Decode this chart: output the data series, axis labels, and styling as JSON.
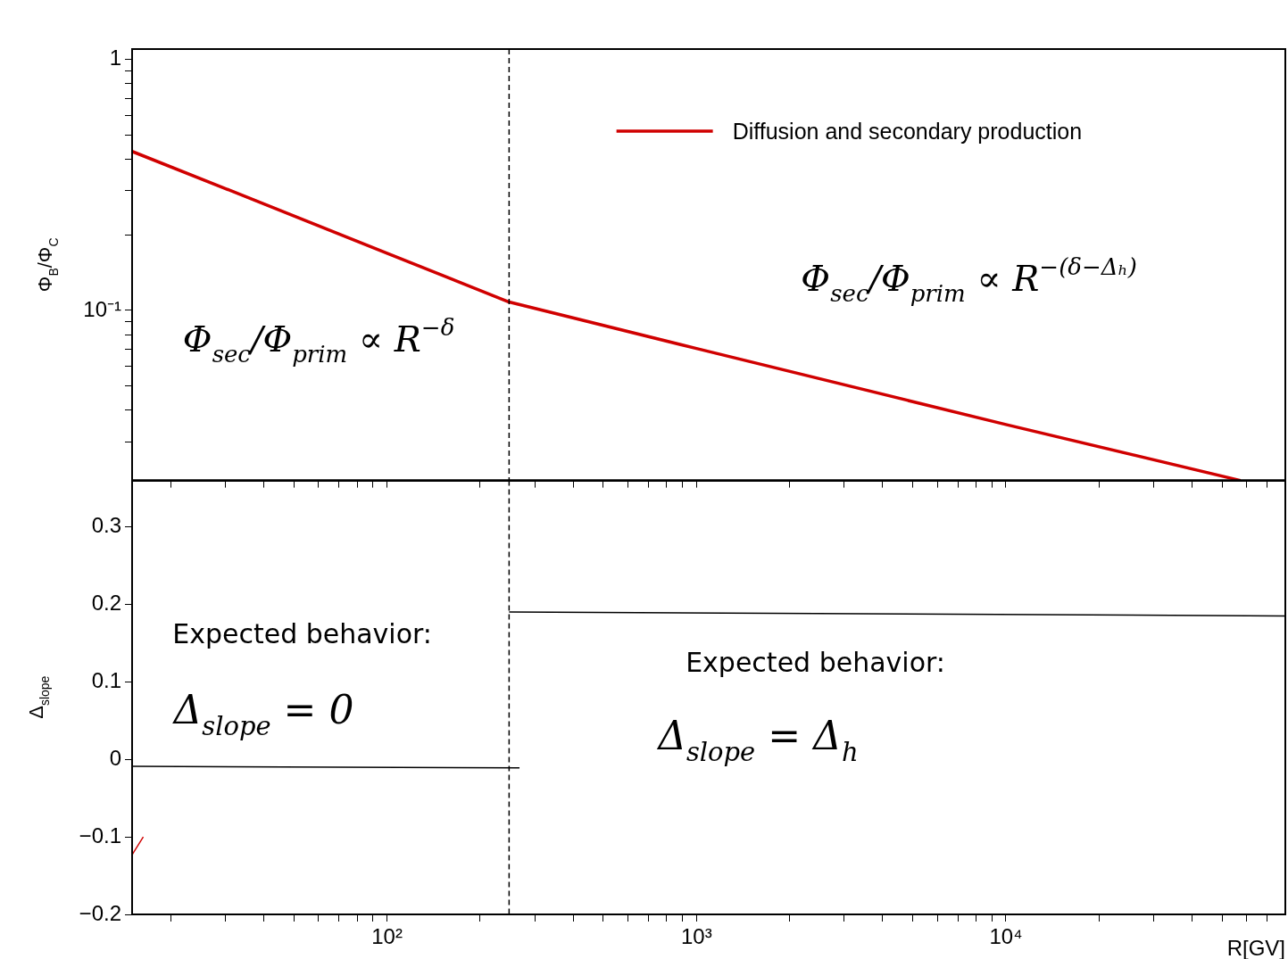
{
  "chart_data": [
    {
      "type": "line",
      "ylabel": "Φ$_{B}$/Φ$_{C}$",
      "log": "xy",
      "grid": false,
      "legend": "top right",
      "marker": "none",
      "line_style": "solid",
      "tick_labels": "y",
      "xlim": [
        15,
        80000
      ],
      "xticks": [
        {
          "value": 20,
          "label": null
        },
        {
          "value": 30,
          "label": null
        },
        {
          "value": 40,
          "label": null
        },
        {
          "value": 50,
          "label": null
        },
        {
          "value": 60,
          "label": null
        },
        {
          "value": 70,
          "label": null
        },
        {
          "value": 80,
          "label": null
        },
        {
          "value": 90,
          "label": null
        },
        {
          "value": 100,
          "label": null
        },
        {
          "value": 200,
          "label": null
        },
        {
          "value": 300,
          "label": null
        },
        {
          "value": 400,
          "label": null
        },
        {
          "value": 500,
          "label": null
        },
        {
          "value": 600,
          "label": null
        },
        {
          "value": 700,
          "label": null
        },
        {
          "value": 800,
          "label": null
        },
        {
          "value": 900,
          "label": null
        },
        {
          "value": 1000,
          "label": null
        },
        {
          "value": 2000,
          "label": null
        },
        {
          "value": 3000,
          "label": null
        },
        {
          "value": 4000,
          "label": null
        },
        {
          "value": 5000,
          "label": null
        },
        {
          "value": 6000,
          "label": null
        },
        {
          "value": 7000,
          "label": null
        },
        {
          "value": 8000,
          "label": null
        },
        {
          "value": 9000,
          "label": null
        },
        {
          "value": 10000,
          "label": null
        },
        {
          "value": 20000,
          "label": null
        },
        {
          "value": 30000,
          "label": null
        },
        {
          "value": 40000,
          "label": null
        },
        {
          "value": 50000,
          "label": null
        },
        {
          "value": 60000,
          "label": null
        },
        {
          "value": 70000,
          "label": null
        }
      ],
      "ylim": [
        0.021,
        1.1
      ],
      "yticks": [
        {
          "value": 0.03,
          "label": null
        },
        {
          "value": 0.04,
          "label": null
        },
        {
          "value": 0.05,
          "label": null
        },
        {
          "value": 0.06,
          "label": null
        },
        {
          "value": 0.07,
          "label": null
        },
        {
          "value": 0.08,
          "label": null
        },
        {
          "value": 0.09,
          "label": null
        },
        {
          "value": 0.1,
          "label": "10⁻¹"
        },
        {
          "value": 0.2,
          "label": null
        },
        {
          "value": 0.3,
          "label": null
        },
        {
          "value": 0.4,
          "label": null
        },
        {
          "value": 0.5,
          "label": null
        },
        {
          "value": 0.6,
          "label": null
        },
        {
          "value": 0.7,
          "label": null
        },
        {
          "value": 0.8,
          "label": null
        },
        {
          "value": 0.9,
          "label": null
        },
        {
          "value": 1,
          "label": "1"
        }
      ],
      "series": [
        {
          "name": "Diffusion and secondary production",
          "color": "#d00000",
          "x": [
            15,
            30,
            100,
            248,
            1000,
            10000,
            57300
          ],
          "values": [
            0.43,
            0.306,
            0.169,
            0.108,
            0.0705,
            0.0351,
            0.021
          ]
        }
      ],
      "ref_lines": [
        {
          "axis": "x",
          "value": 248,
          "label": null,
          "color": "#000000",
          "line_style": "dashed"
        }
      ],
      "annotations": [
        "Φ$_{sec}$/Φ$_{prim}$ ∝ R$^{−δ}$",
        "Φ$_{sec}$/Φ$_{prim}$ ∝ R$^{−(δ−Δₕ)}$"
      ]
    },
    {
      "type": "line",
      "xlabel": "R[GV]",
      "ylabel": "Δ$_{slope}$",
      "log": "x",
      "grid": false,
      "legend": false,
      "marker": "none",
      "line_style": "solid",
      "xlim": [
        15,
        80000
      ],
      "xticks": [
        {
          "value": 20,
          "label": null
        },
        {
          "value": 30,
          "label": null
        },
        {
          "value": 40,
          "label": null
        },
        {
          "value": 50,
          "label": null
        },
        {
          "value": 60,
          "label": null
        },
        {
          "value": 70,
          "label": null
        },
        {
          "value": 80,
          "label": null
        },
        {
          "value": 90,
          "label": null
        },
        {
          "value": 100,
          "label": "10²"
        },
        {
          "value": 200,
          "label": null
        },
        {
          "value": 300,
          "label": null
        },
        {
          "value": 400,
          "label": null
        },
        {
          "value": 500,
          "label": null
        },
        {
          "value": 600,
          "label": null
        },
        {
          "value": 700,
          "label": null
        },
        {
          "value": 800,
          "label": null
        },
        {
          "value": 900,
          "label": null
        },
        {
          "value": 1000,
          "label": "10³"
        },
        {
          "value": 2000,
          "label": null
        },
        {
          "value": 3000,
          "label": null
        },
        {
          "value": 4000,
          "label": null
        },
        {
          "value": 5000,
          "label": null
        },
        {
          "value": 6000,
          "label": null
        },
        {
          "value": 7000,
          "label": null
        },
        {
          "value": 8000,
          "label": null
        },
        {
          "value": 9000,
          "label": null
        },
        {
          "value": 10000,
          "label": "10⁴"
        },
        {
          "value": 20000,
          "label": null
        },
        {
          "value": 30000,
          "label": null
        },
        {
          "value": 40000,
          "label": null
        },
        {
          "value": 50000,
          "label": null
        },
        {
          "value": 60000,
          "label": null
        },
        {
          "value": 70000,
          "label": null
        }
      ],
      "ylim": [
        -0.2,
        0.36
      ],
      "yticks": [
        {
          "value": -0.2,
          "label": "−0.2"
        },
        {
          "value": -0.1,
          "label": "−0.1"
        },
        {
          "value": 0,
          "label": "0"
        },
        {
          "value": 0.1,
          "label": "0.1"
        },
        {
          "value": 0.2,
          "label": "0.2"
        },
        {
          "value": 0.3,
          "label": "0.3"
        }
      ],
      "series": [
        {
          "color": "#000000",
          "x": [
            15,
            268
          ],
          "values": [
            -0.009,
            -0.011
          ]
        },
        {
          "color": "#000000",
          "x": [
            248,
            80000
          ],
          "values": [
            0.19,
            0.185
          ]
        },
        {
          "color": "#d00000",
          "x": [
            15,
            16.3
          ],
          "values": [
            -0.123,
            -0.1
          ]
        }
      ],
      "ref_lines": [
        {
          "axis": "x",
          "value": 248,
          "label": null,
          "color": "#000000",
          "line_style": "dashed"
        }
      ],
      "annotations": [
        "Expected behavior:",
        "Δ$_{slope}$ = 0",
        "Expected behavior:",
        "Δ$_{slope}$ = Δ$_{h}$"
      ]
    }
  ]
}
